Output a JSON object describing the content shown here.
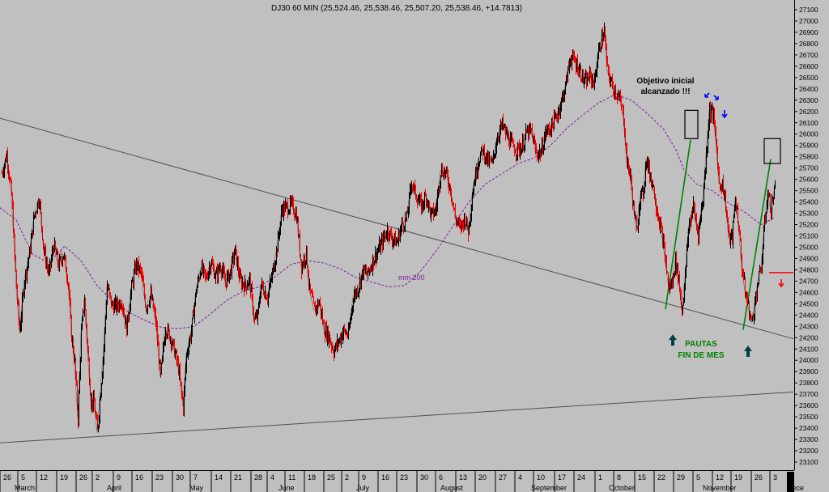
{
  "chart_data": {
    "type": "line",
    "title": "DJ30 60 MIN (25,524.46, 25,538.46, 25,507.20, 25,538.46, +14.7813)",
    "y_axis": {
      "position": "right",
      "ylim": [
        23050,
        27150
      ],
      "ticks": [
        23100,
        23200,
        23300,
        23400,
        23500,
        23600,
        23700,
        23800,
        23900,
        24000,
        24100,
        24200,
        24300,
        24400,
        24500,
        24600,
        24700,
        24800,
        24900,
        25000,
        25100,
        25200,
        25300,
        25400,
        25500,
        25600,
        25700,
        25800,
        25900,
        26000,
        26100,
        26200,
        26300,
        26400,
        26500,
        26600,
        26700,
        26800,
        26900,
        27000,
        27100
      ]
    },
    "x_axis": {
      "day_ticks": [
        "26",
        "5",
        "12",
        "19",
        "26",
        "2",
        "9",
        "16",
        "23",
        "30",
        "7",
        "14",
        "21",
        "28",
        "4",
        "11",
        "18",
        "25",
        "2",
        "9",
        "16",
        "23",
        "30",
        "6",
        "13",
        "20",
        "27",
        "4",
        "10",
        "17",
        "24",
        "1",
        "8",
        "15",
        "22",
        "29",
        "5",
        "12",
        "19",
        "26",
        "3"
      ],
      "month_labels": [
        "March",
        "April",
        "May",
        "June",
        "July",
        "August",
        "September",
        "October",
        "November",
        "Dece"
      ]
    },
    "series": [
      {
        "label": "mm 200",
        "style": "dashed",
        "color": "#7b1fa2",
        "points": [
          [
            0,
            25350
          ],
          [
            20,
            25240
          ],
          [
            40,
            24940
          ],
          [
            60,
            24860
          ],
          [
            80,
            25010
          ],
          [
            100,
            24880
          ],
          [
            120,
            24660
          ],
          [
            140,
            24520
          ],
          [
            160,
            24420
          ],
          [
            180,
            24350
          ],
          [
            200,
            24290
          ],
          [
            220,
            24280
          ],
          [
            240,
            24300
          ],
          [
            260,
            24410
          ],
          [
            280,
            24530
          ],
          [
            300,
            24610
          ],
          [
            320,
            24650
          ],
          [
            340,
            24740
          ],
          [
            360,
            24850
          ],
          [
            380,
            24880
          ],
          [
            400,
            24860
          ],
          [
            420,
            24810
          ],
          [
            440,
            24730
          ],
          [
            460,
            24690
          ],
          [
            480,
            24650
          ],
          [
            500,
            24660
          ],
          [
            520,
            24790
          ],
          [
            540,
            24980
          ],
          [
            560,
            25190
          ],
          [
            580,
            25410
          ],
          [
            600,
            25560
          ],
          [
            620,
            25650
          ],
          [
            640,
            25740
          ],
          [
            660,
            25790
          ],
          [
            680,
            25900
          ],
          [
            700,
            26050
          ],
          [
            720,
            26170
          ],
          [
            740,
            26280
          ],
          [
            760,
            26350
          ],
          [
            780,
            26300
          ],
          [
            800,
            26180
          ],
          [
            820,
            26040
          ],
          [
            835,
            25860
          ],
          [
            845,
            25680
          ],
          [
            860,
            25560
          ],
          [
            880,
            25500
          ],
          [
            900,
            25390
          ],
          [
            920,
            25310
          ],
          [
            940,
            25200
          ],
          [
            957,
            25260
          ]
        ]
      },
      {
        "label": "price",
        "color": "#000000",
        "accent": "#ff0000",
        "points": [
          [
            2,
            25650
          ],
          [
            8,
            25820
          ],
          [
            14,
            25460
          ],
          [
            20,
            24640
          ],
          [
            24,
            24260
          ],
          [
            30,
            24720
          ],
          [
            36,
            24940
          ],
          [
            42,
            25280
          ],
          [
            48,
            25440
          ],
          [
            54,
            24960
          ],
          [
            60,
            24760
          ],
          [
            66,
            25020
          ],
          [
            72,
            24840
          ],
          [
            78,
            24940
          ],
          [
            84,
            24690
          ],
          [
            88,
            24220
          ],
          [
            92,
            23980
          ],
          [
            96,
            23490
          ],
          [
            100,
            24240
          ],
          [
            104,
            24540
          ],
          [
            108,
            24090
          ],
          [
            112,
            23640
          ],
          [
            116,
            23620
          ],
          [
            120,
            23360
          ],
          [
            124,
            23740
          ],
          [
            128,
            24120
          ],
          [
            132,
            24660
          ],
          [
            138,
            24480
          ],
          [
            144,
            24480
          ],
          [
            150,
            24530
          ],
          [
            156,
            24280
          ],
          [
            162,
            24640
          ],
          [
            168,
            24850
          ],
          [
            174,
            24770
          ],
          [
            180,
            24470
          ],
          [
            186,
            24580
          ],
          [
            192,
            24350
          ],
          [
            198,
            23850
          ],
          [
            204,
            24290
          ],
          [
            210,
            24210
          ],
          [
            216,
            24060
          ],
          [
            220,
            23930
          ],
          [
            226,
            23590
          ],
          [
            230,
            24050
          ],
          [
            236,
            24260
          ],
          [
            242,
            24620
          ],
          [
            248,
            24820
          ],
          [
            254,
            24720
          ],
          [
            260,
            24870
          ],
          [
            266,
            24740
          ],
          [
            272,
            24840
          ],
          [
            278,
            24690
          ],
          [
            284,
            24780
          ],
          [
            290,
            24970
          ],
          [
            296,
            24710
          ],
          [
            302,
            24660
          ],
          [
            308,
            24710
          ],
          [
            314,
            24350
          ],
          [
            318,
            24390
          ],
          [
            322,
            24670
          ],
          [
            330,
            24560
          ],
          [
            336,
            24760
          ],
          [
            342,
            25000
          ],
          [
            348,
            25340
          ],
          [
            354,
            25350
          ],
          [
            360,
            25370
          ],
          [
            366,
            25280
          ],
          [
            372,
            24830
          ],
          [
            378,
            24950
          ],
          [
            382,
            24620
          ],
          [
            388,
            24440
          ],
          [
            394,
            24520
          ],
          [
            400,
            24270
          ],
          [
            406,
            24210
          ],
          [
            412,
            24080
          ],
          [
            418,
            24170
          ],
          [
            424,
            24260
          ],
          [
            430,
            24220
          ],
          [
            436,
            24560
          ],
          [
            442,
            24640
          ],
          [
            448,
            24790
          ],
          [
            454,
            24760
          ],
          [
            460,
            24880
          ],
          [
            466,
            24960
          ],
          [
            472,
            25050
          ],
          [
            478,
            25150
          ],
          [
            484,
            25080
          ],
          [
            490,
            25040
          ],
          [
            496,
            25200
          ],
          [
            502,
            25250
          ],
          [
            508,
            25580
          ],
          [
            514,
            25450
          ],
          [
            520,
            25360
          ],
          [
            526,
            25460
          ],
          [
            532,
            25280
          ],
          [
            538,
            25330
          ],
          [
            544,
            25680
          ],
          [
            550,
            25660
          ],
          [
            556,
            25520
          ],
          [
            562,
            25260
          ],
          [
            568,
            25170
          ],
          [
            574,
            25260
          ],
          [
            578,
            25140
          ],
          [
            584,
            25520
          ],
          [
            590,
            25760
          ],
          [
            596,
            25860
          ],
          [
            602,
            25760
          ],
          [
            608,
            25740
          ],
          [
            614,
            25980
          ],
          [
            620,
            26080
          ],
          [
            626,
            25980
          ],
          [
            632,
            25900
          ],
          [
            638,
            25860
          ],
          [
            644,
            25880
          ],
          [
            650,
            26010
          ],
          [
            656,
            26020
          ],
          [
            662,
            25830
          ],
          [
            668,
            25840
          ],
          [
            674,
            26020
          ],
          [
            680,
            26060
          ],
          [
            686,
            26140
          ],
          [
            692,
            26260
          ],
          [
            698,
            26420
          ],
          [
            704,
            26680
          ],
          [
            710,
            26640
          ],
          [
            716,
            26560
          ],
          [
            722,
            26450
          ],
          [
            728,
            26510
          ],
          [
            734,
            26460
          ],
          [
            738,
            26690
          ],
          [
            742,
            26820
          ],
          [
            746,
            26910
          ],
          [
            750,
            26560
          ],
          [
            756,
            26420
          ],
          [
            762,
            26350
          ],
          [
            766,
            26280
          ],
          [
            770,
            26150
          ],
          [
            774,
            25750
          ],
          [
            778,
            25650
          ],
          [
            782,
            25360
          ],
          [
            786,
            25130
          ],
          [
            790,
            25440
          ],
          [
            794,
            25470
          ],
          [
            798,
            25780
          ],
          [
            802,
            25650
          ],
          [
            806,
            25560
          ],
          [
            810,
            25380
          ],
          [
            814,
            25230
          ],
          [
            818,
            25080
          ],
          [
            822,
            24860
          ],
          [
            826,
            24630
          ],
          [
            830,
            24690
          ],
          [
            834,
            24880
          ],
          [
            838,
            24720
          ],
          [
            842,
            24440
          ],
          [
            846,
            24730
          ],
          [
            850,
            25160
          ],
          [
            856,
            25360
          ],
          [
            862,
            25120
          ],
          [
            868,
            25430
          ],
          [
            872,
            25820
          ],
          [
            876,
            26210
          ],
          [
            880,
            26190
          ],
          [
            884,
            25950
          ],
          [
            888,
            25560
          ],
          [
            892,
            25560
          ],
          [
            896,
            25380
          ],
          [
            900,
            25080
          ],
          [
            904,
            25080
          ],
          [
            908,
            25430
          ],
          [
            912,
            25200
          ],
          [
            916,
            24830
          ],
          [
            920,
            24610
          ],
          [
            924,
            24480
          ],
          [
            928,
            24330
          ],
          [
            932,
            24500
          ],
          [
            936,
            24700
          ],
          [
            940,
            24820
          ],
          [
            944,
            25200
          ],
          [
            948,
            25480
          ],
          [
            952,
            25330
          ],
          [
            957,
            25540
          ]
        ]
      }
    ],
    "trendlines": [
      {
        "from": [
          0,
          26140
        ],
        "to": [
          980,
          24190
        ],
        "color": "#505050"
      },
      {
        "from": [
          0,
          23270
        ],
        "to": [
          980,
          23720
        ],
        "color": "#505050"
      },
      {
        "from": [
          822,
          24450
        ],
        "to": [
          853,
          25950
        ],
        "color": "#008000"
      },
      {
        "from": [
          918,
          24270
        ],
        "to": [
          952,
          25780
        ],
        "color": "#008000"
      }
    ],
    "annotations": [
      {
        "id": "objetivo",
        "lines": [
          "Objetivo inicial",
          "alcanzado !!!"
        ],
        "color": "#000000"
      },
      {
        "id": "pautas",
        "lines": [
          "PAUTAS",
          "FIN DE MES"
        ],
        "color": "#008000"
      },
      {
        "id": "mm200-label",
        "text": "mm 200",
        "color": "#7b1fa2"
      }
    ],
    "markers": [
      {
        "type": "up-arrow",
        "color": "#004040",
        "x": 831,
        "y_value": 24230
      },
      {
        "type": "up-arrow",
        "color": "#004040",
        "x": 924,
        "y_value": 24130
      },
      {
        "type": "box",
        "color": "#000000",
        "x": 846,
        "y_values": [
          25960,
          26210
        ]
      },
      {
        "type": "box",
        "color": "#000000",
        "x": 944,
        "y_values": [
          25740,
          25960
        ]
      },
      {
        "type": "small-arrow",
        "direction": "down-left",
        "color": "#0000ff"
      },
      {
        "type": "small-arrow",
        "direction": "down-right",
        "color": "#0000ff"
      },
      {
        "type": "small-arrow",
        "direction": "down",
        "color": "#0000ff"
      },
      {
        "type": "level-line",
        "color": "#ff0000",
        "y_value": 24775
      },
      {
        "type": "small-arrow",
        "direction": "down",
        "color": "#ff0000"
      }
    ]
  }
}
